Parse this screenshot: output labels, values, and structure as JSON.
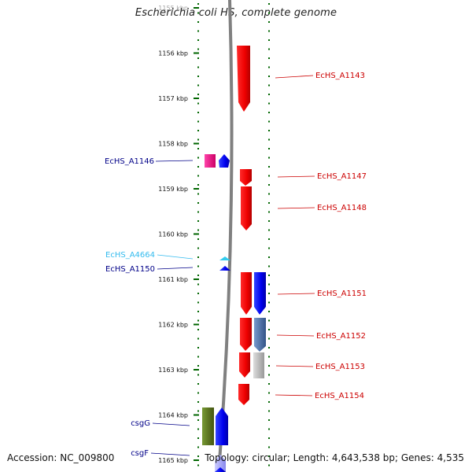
{
  "title": "Escherichia coli HS, complete genome",
  "footer": {
    "accession": "Accession: NC_009800",
    "summary": "Topology: circular; Length: 4,643,538 bp; Genes: 4,535"
  },
  "colors": {
    "forward": "#ee0000",
    "reverse": "#0000ee",
    "light_blue": "#33ccee",
    "magenta": "#ee1188",
    "steel_blue": "#4477aa",
    "grey": "#aaaaaa",
    "olive": "#557711",
    "dot_green": "#006600"
  },
  "ticks": [
    {
      "label": "1155 kbp"
    },
    {
      "label": "1156 kbp"
    },
    {
      "label": "1157 kbp"
    },
    {
      "label": "1158 kbp"
    },
    {
      "label": "1159 kbp"
    },
    {
      "label": "1160 kbp"
    },
    {
      "label": "1161 kbp"
    },
    {
      "label": "1162 kbp"
    },
    {
      "label": "1163 kbp"
    },
    {
      "label": "1164 kbp"
    },
    {
      "label": "1165 kbp"
    }
  ],
  "left_labels": [
    {
      "text": "EcHS_A1146",
      "color": "#000088"
    },
    {
      "text": "EcHS_A4664",
      "color": "#33bbee"
    },
    {
      "text": "EcHS_A1150",
      "color": "#000088"
    },
    {
      "text": "csgG",
      "color": "#000088"
    },
    {
      "text": "csgF",
      "color": "#000088"
    }
  ],
  "right_labels": [
    {
      "text": "EcHS_A1143",
      "color": "#cc0000"
    },
    {
      "text": "EcHS_A1147",
      "color": "#cc0000"
    },
    {
      "text": "EcHS_A1148",
      "color": "#cc0000"
    },
    {
      "text": "EcHS_A1151",
      "color": "#cc0000"
    },
    {
      "text": "EcHS_A1152",
      "color": "#cc0000"
    },
    {
      "text": "EcHS_A1153",
      "color": "#cc0000"
    },
    {
      "text": "EcHS_A1154",
      "color": "#cc0000"
    }
  ]
}
